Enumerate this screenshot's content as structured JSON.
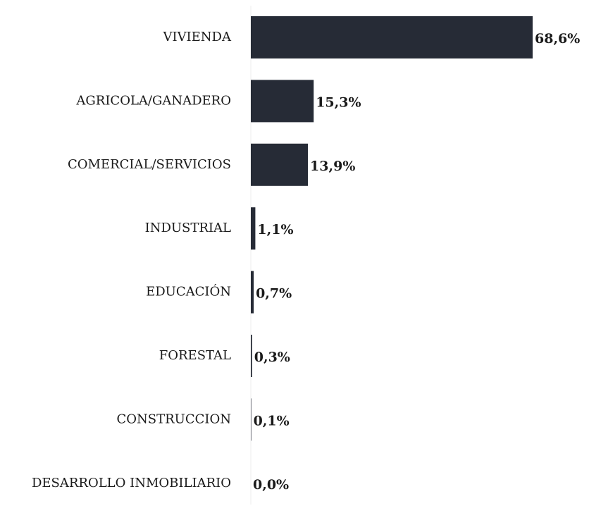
{
  "chart_data": {
    "type": "bar",
    "orientation": "horizontal",
    "color": "#262b36",
    "categories": [
      "VIVIENDA",
      "AGRICOLA/GANADERO",
      "COMERCIAL/SERVICIOS",
      "INDUSTRIAL",
      "EDUCACIÓN",
      "FORESTAL",
      "CONSTRUCCION",
      "DESARROLLO INMOBILIARIO"
    ],
    "values": [
      68.6,
      15.3,
      13.9,
      1.1,
      0.7,
      0.3,
      0.1,
      0.0
    ],
    "value_labels": [
      "68,6%",
      "15,3%",
      "13,9%",
      "1,1%",
      "0,7%",
      "0,3%",
      "0,1%",
      "0,0%"
    ]
  }
}
